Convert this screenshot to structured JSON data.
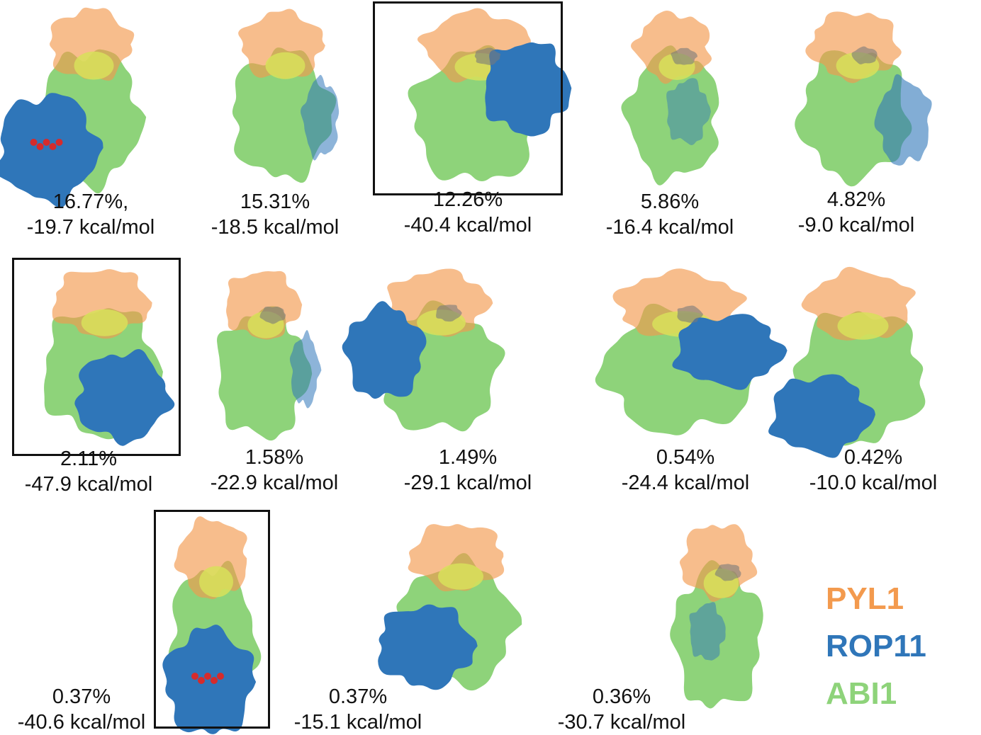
{
  "colors": {
    "PYL1": "#F39A4E",
    "ROP11": "#2F76B9",
    "ABI1": "#8ED37A",
    "overlap": "#D8E05A",
    "loop": "#7A7A7A",
    "ligand": "#D62B2B"
  },
  "poses": [
    {
      "percent": "16.77%,",
      "energy": "-19.7 kcal/mol",
      "boxed": false
    },
    {
      "percent": "15.31%",
      "energy": "-18.5 kcal/mol",
      "boxed": false
    },
    {
      "percent": "12.26%",
      "energy": "-40.4 kcal/mol",
      "boxed": true
    },
    {
      "percent": "5.86%",
      "energy": "-16.4 kcal/mol",
      "boxed": false
    },
    {
      "percent": "4.82%",
      "energy": "-9.0 kcal/mol",
      "boxed": false
    },
    {
      "percent": "2.11%",
      "energy": "-47.9 kcal/mol",
      "boxed": true
    },
    {
      "percent": "1.58%",
      "energy": "-22.9 kcal/mol",
      "boxed": false
    },
    {
      "percent": "1.49%",
      "energy": "-29.1 kcal/mol",
      "boxed": false
    },
    {
      "percent": "0.54%",
      "energy": "-24.4 kcal/mol",
      "boxed": false
    },
    {
      "percent": "0.42%",
      "energy": "-10.0 kcal/mol",
      "boxed": false
    },
    {
      "percent": "0.37%",
      "energy": "-40.6 kcal/mol",
      "boxed": true
    },
    {
      "percent": "0.37%",
      "energy": "-15.1 kcal/mol",
      "boxed": false
    },
    {
      "percent": "0.36%",
      "energy": "-30.7 kcal/mol",
      "boxed": false
    }
  ],
  "legend": {
    "pyl1": "PYL1",
    "rop11": "ROP11",
    "abi1": "ABI1"
  }
}
